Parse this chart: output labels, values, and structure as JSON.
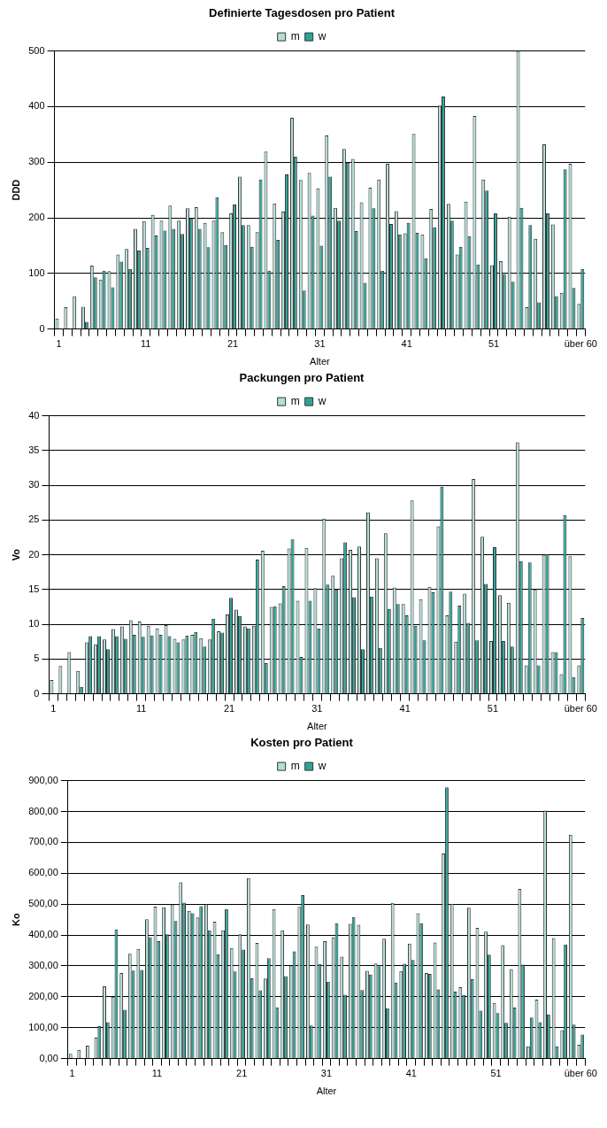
{
  "chart_data": [
    {
      "type": "bar",
      "title": "Definierte Tagesdosen pro Patient",
      "xlabel": "Alter",
      "ylabel": "DDD",
      "categories": [
        "1",
        null,
        null,
        null,
        null,
        null,
        null,
        null,
        null,
        null,
        "11",
        null,
        null,
        null,
        null,
        null,
        null,
        null,
        null,
        null,
        "21",
        null,
        null,
        null,
        null,
        null,
        null,
        null,
        null,
        null,
        "31",
        null,
        null,
        null,
        null,
        null,
        null,
        null,
        null,
        null,
        "41",
        null,
        null,
        null,
        null,
        null,
        null,
        null,
        null,
        null,
        "51",
        null,
        null,
        null,
        null,
        null,
        null,
        null,
        null,
        null,
        "über 60"
      ],
      "series": [
        {
          "name": "m",
          "color": "#b3dfd8",
          "values": [
            19,
            39,
            59,
            40,
            114,
            89,
            104,
            134,
            144,
            180,
            194,
            205,
            195,
            222,
            195,
            217,
            219,
            191,
            195,
            174,
            208,
            274,
            187,
            174,
            319,
            226,
            211,
            380,
            268,
            281,
            253,
            348,
            218,
            324,
            306,
            228,
            254,
            269,
            297,
            212,
            172,
            351,
            170,
            216,
            402,
            225,
            134,
            229,
            383,
            269,
            115,
            122,
            202,
            500,
            39,
            162,
            332,
            188,
            65,
            297,
            45
          ]
        },
        {
          "name": "w",
          "color": "#2aa59a",
          "values": [
            0,
            0,
            0,
            13,
            93,
            105,
            75,
            121,
            108,
            141,
            146,
            168,
            177,
            180,
            171,
            199,
            180,
            147,
            237,
            151,
            224,
            187,
            148,
            269,
            105,
            160,
            278,
            310,
            69,
            204,
            150,
            274,
            195,
            299,
            176,
            83,
            217,
            105,
            189,
            170,
            191,
            173,
            127,
            183,
            418,
            195,
            148,
            167,
            116,
            249,
            208,
            99,
            85,
            218,
            187,
            48,
            208,
            59,
            287,
            74,
            108
          ]
        }
      ],
      "ylim": [
        0,
        500
      ],
      "yticks": [
        0,
        100,
        200,
        300,
        400,
        500
      ],
      "grid": "y",
      "legend": "top"
    },
    {
      "type": "bar",
      "title": "Packungen pro Patient",
      "xlabel": "Alter",
      "ylabel": "Vo",
      "categories": [
        "1",
        null,
        null,
        null,
        null,
        null,
        null,
        null,
        null,
        null,
        "11",
        null,
        null,
        null,
        null,
        null,
        null,
        null,
        null,
        null,
        "21",
        null,
        null,
        null,
        null,
        null,
        null,
        null,
        null,
        null,
        "31",
        null,
        null,
        null,
        null,
        null,
        null,
        null,
        null,
        null,
        "41",
        null,
        null,
        null,
        null,
        null,
        null,
        null,
        null,
        null,
        "51",
        null,
        null,
        null,
        null,
        null,
        null,
        null,
        null,
        null,
        "über 60"
      ],
      "series": [
        {
          "name": "m",
          "color": "#b3dfd8",
          "values": [
            2,
            4,
            6,
            3.3,
            7.4,
            7.1,
            7.8,
            9.3,
            9.7,
            10.6,
            10.4,
            9.8,
            9.4,
            9.9,
            7.9,
            7.8,
            8.5,
            8,
            7.8,
            9,
            11.4,
            12.1,
            9.7,
            9.8,
            20.6,
            12.5,
            13,
            20.9,
            13.4,
            21,
            15.2,
            25.2,
            17,
            19.5,
            20.7,
            21.2,
            26.1,
            19.5,
            23.1,
            15.3,
            12.9,
            27.8,
            13.6,
            15.4,
            24.1,
            11.3,
            7.5,
            14.4,
            30.9,
            22.6,
            7.6,
            14.2,
            13.1,
            36.2,
            4.1,
            15,
            20,
            6,
            2.8,
            19.8,
            4.1
          ]
        },
        {
          "name": "w",
          "color": "#2aa59a",
          "values": [
            0,
            0,
            0,
            1,
            8.3,
            8.3,
            6.4,
            8.3,
            7.9,
            8.5,
            8.2,
            8.4,
            8.5,
            8.3,
            7.4,
            8.4,
            8.9,
            6.8,
            10.8,
            8.8,
            13.8,
            11.2,
            9.4,
            19.3,
            4.4,
            12.6,
            15.5,
            22.2,
            5.3,
            13.4,
            9.4,
            15.7,
            15,
            21.8,
            13.9,
            6.4,
            14,
            6.6,
            12.2,
            12.9,
            11.3,
            9.8,
            7.7,
            14.6,
            29.8,
            14.7,
            12.7,
            10.2,
            7.7,
            15.8,
            21.1,
            7.6,
            6.8,
            19.1,
            18.9,
            4.1,
            20.1,
            6,
            25.7,
            2.4,
            10.9
          ]
        }
      ],
      "ylim": [
        0,
        40
      ],
      "yticks": [
        0,
        5,
        10,
        15,
        20,
        25,
        30,
        35,
        40
      ],
      "grid": "y",
      "legend": "top"
    },
    {
      "type": "bar",
      "title": "Kosten pro Patient",
      "xlabel": "Alter",
      "ylabel": "Ko",
      "categories": [
        "1",
        null,
        null,
        null,
        null,
        null,
        null,
        null,
        null,
        null,
        "11",
        null,
        null,
        null,
        null,
        null,
        null,
        null,
        null,
        null,
        "21",
        null,
        null,
        null,
        null,
        null,
        null,
        null,
        null,
        null,
        "31",
        null,
        null,
        null,
        null,
        null,
        null,
        null,
        null,
        null,
        "41",
        null,
        null,
        null,
        null,
        null,
        null,
        null,
        null,
        null,
        "51",
        null,
        null,
        null,
        null,
        null,
        null,
        null,
        null,
        null,
        "über 60"
      ],
      "series": [
        {
          "name": "m",
          "color": "#b3dfd8",
          "values": [
            15,
            28,
            42,
            68,
            234,
            200,
            277,
            339,
            355,
            451,
            492,
            490,
            499,
            571,
            478,
            457,
            500,
            443,
            415,
            358,
            402,
            584,
            374,
            259,
            484,
            415,
            301,
            491,
            434,
            362,
            380,
            392,
            330,
            436,
            433,
            284,
            308,
            388,
            504,
            283,
            372,
            470,
            277,
            376,
            664,
            501,
            231,
            488,
            423,
            411,
            180,
            367,
            290,
            549,
            40,
            191,
            803,
            390,
            92,
            725,
            45
          ]
        },
        {
          "name": "w",
          "color": "#2aa59a",
          "values": [
            null,
            null,
            null,
            105,
            118,
            418,
            158,
            285,
            287,
            393,
            380,
            402,
            445,
            505,
            470,
            493,
            415,
            338,
            484,
            282,
            353,
            260,
            221,
            325,
            166,
            267,
            347,
            529,
            107,
            306,
            249,
            438,
            207,
            458,
            222,
            272,
            303,
            163,
            246,
            307,
            319,
            438,
            274,
            224,
            878,
            217,
            206,
            257,
            155,
            336,
            147,
            116,
            165,
            304,
            133,
            118,
            143,
            40,
            369,
            110,
            78
          ]
        }
      ],
      "ylim": [
        0,
        900
      ],
      "yticks": [
        {
          "value": 0,
          "label": "0,00"
        },
        {
          "value": 100,
          "label": "100,00"
        },
        {
          "value": 200,
          "label": "200,00"
        },
        {
          "value": 300,
          "label": "300,00"
        },
        {
          "value": 400,
          "label": "400,00"
        },
        {
          "value": 500,
          "label": "500,00"
        },
        {
          "value": 600,
          "label": "600,00"
        },
        {
          "value": 700,
          "label": "700,00"
        },
        {
          "value": 800,
          "label": "800,00"
        },
        {
          "value": 900,
          "label": "900,00"
        }
      ],
      "grid": "y",
      "legend": "top"
    }
  ]
}
